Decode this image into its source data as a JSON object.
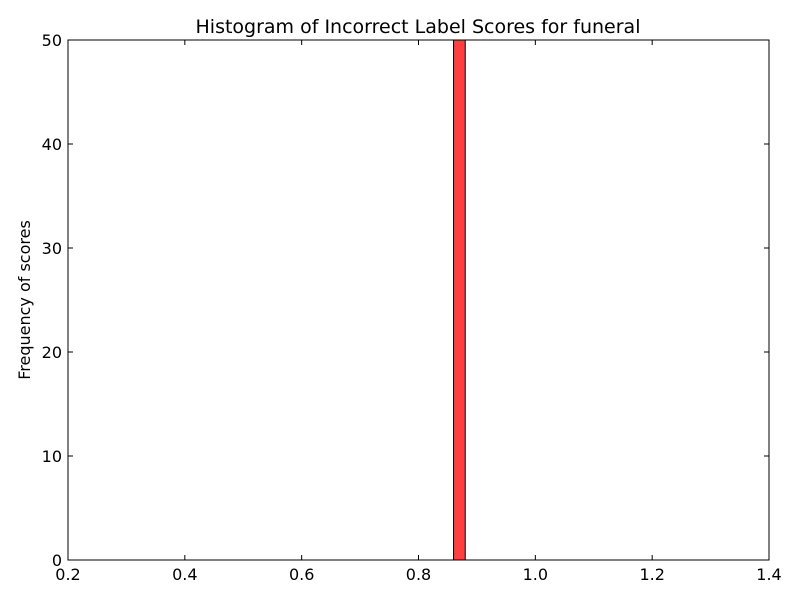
{
  "chart_data": {
    "type": "bar",
    "title": "Histogram of Incorrect Label Scores for funeral",
    "xlabel": "",
    "ylabel": "Frequency of scores",
    "xlim": [
      0.2,
      1.4
    ],
    "ylim": [
      0,
      50
    ],
    "x_ticks": [
      "0.2",
      "0.4",
      "0.6",
      "0.8",
      "1.0",
      "1.2",
      "1.4"
    ],
    "y_ticks": [
      "0",
      "10",
      "20",
      "30",
      "40",
      "50"
    ],
    "grid": false,
    "bar_color": "#ff4040",
    "bars": [
      {
        "x0": 0.86,
        "x1": 0.88,
        "value": 50
      }
    ]
  }
}
